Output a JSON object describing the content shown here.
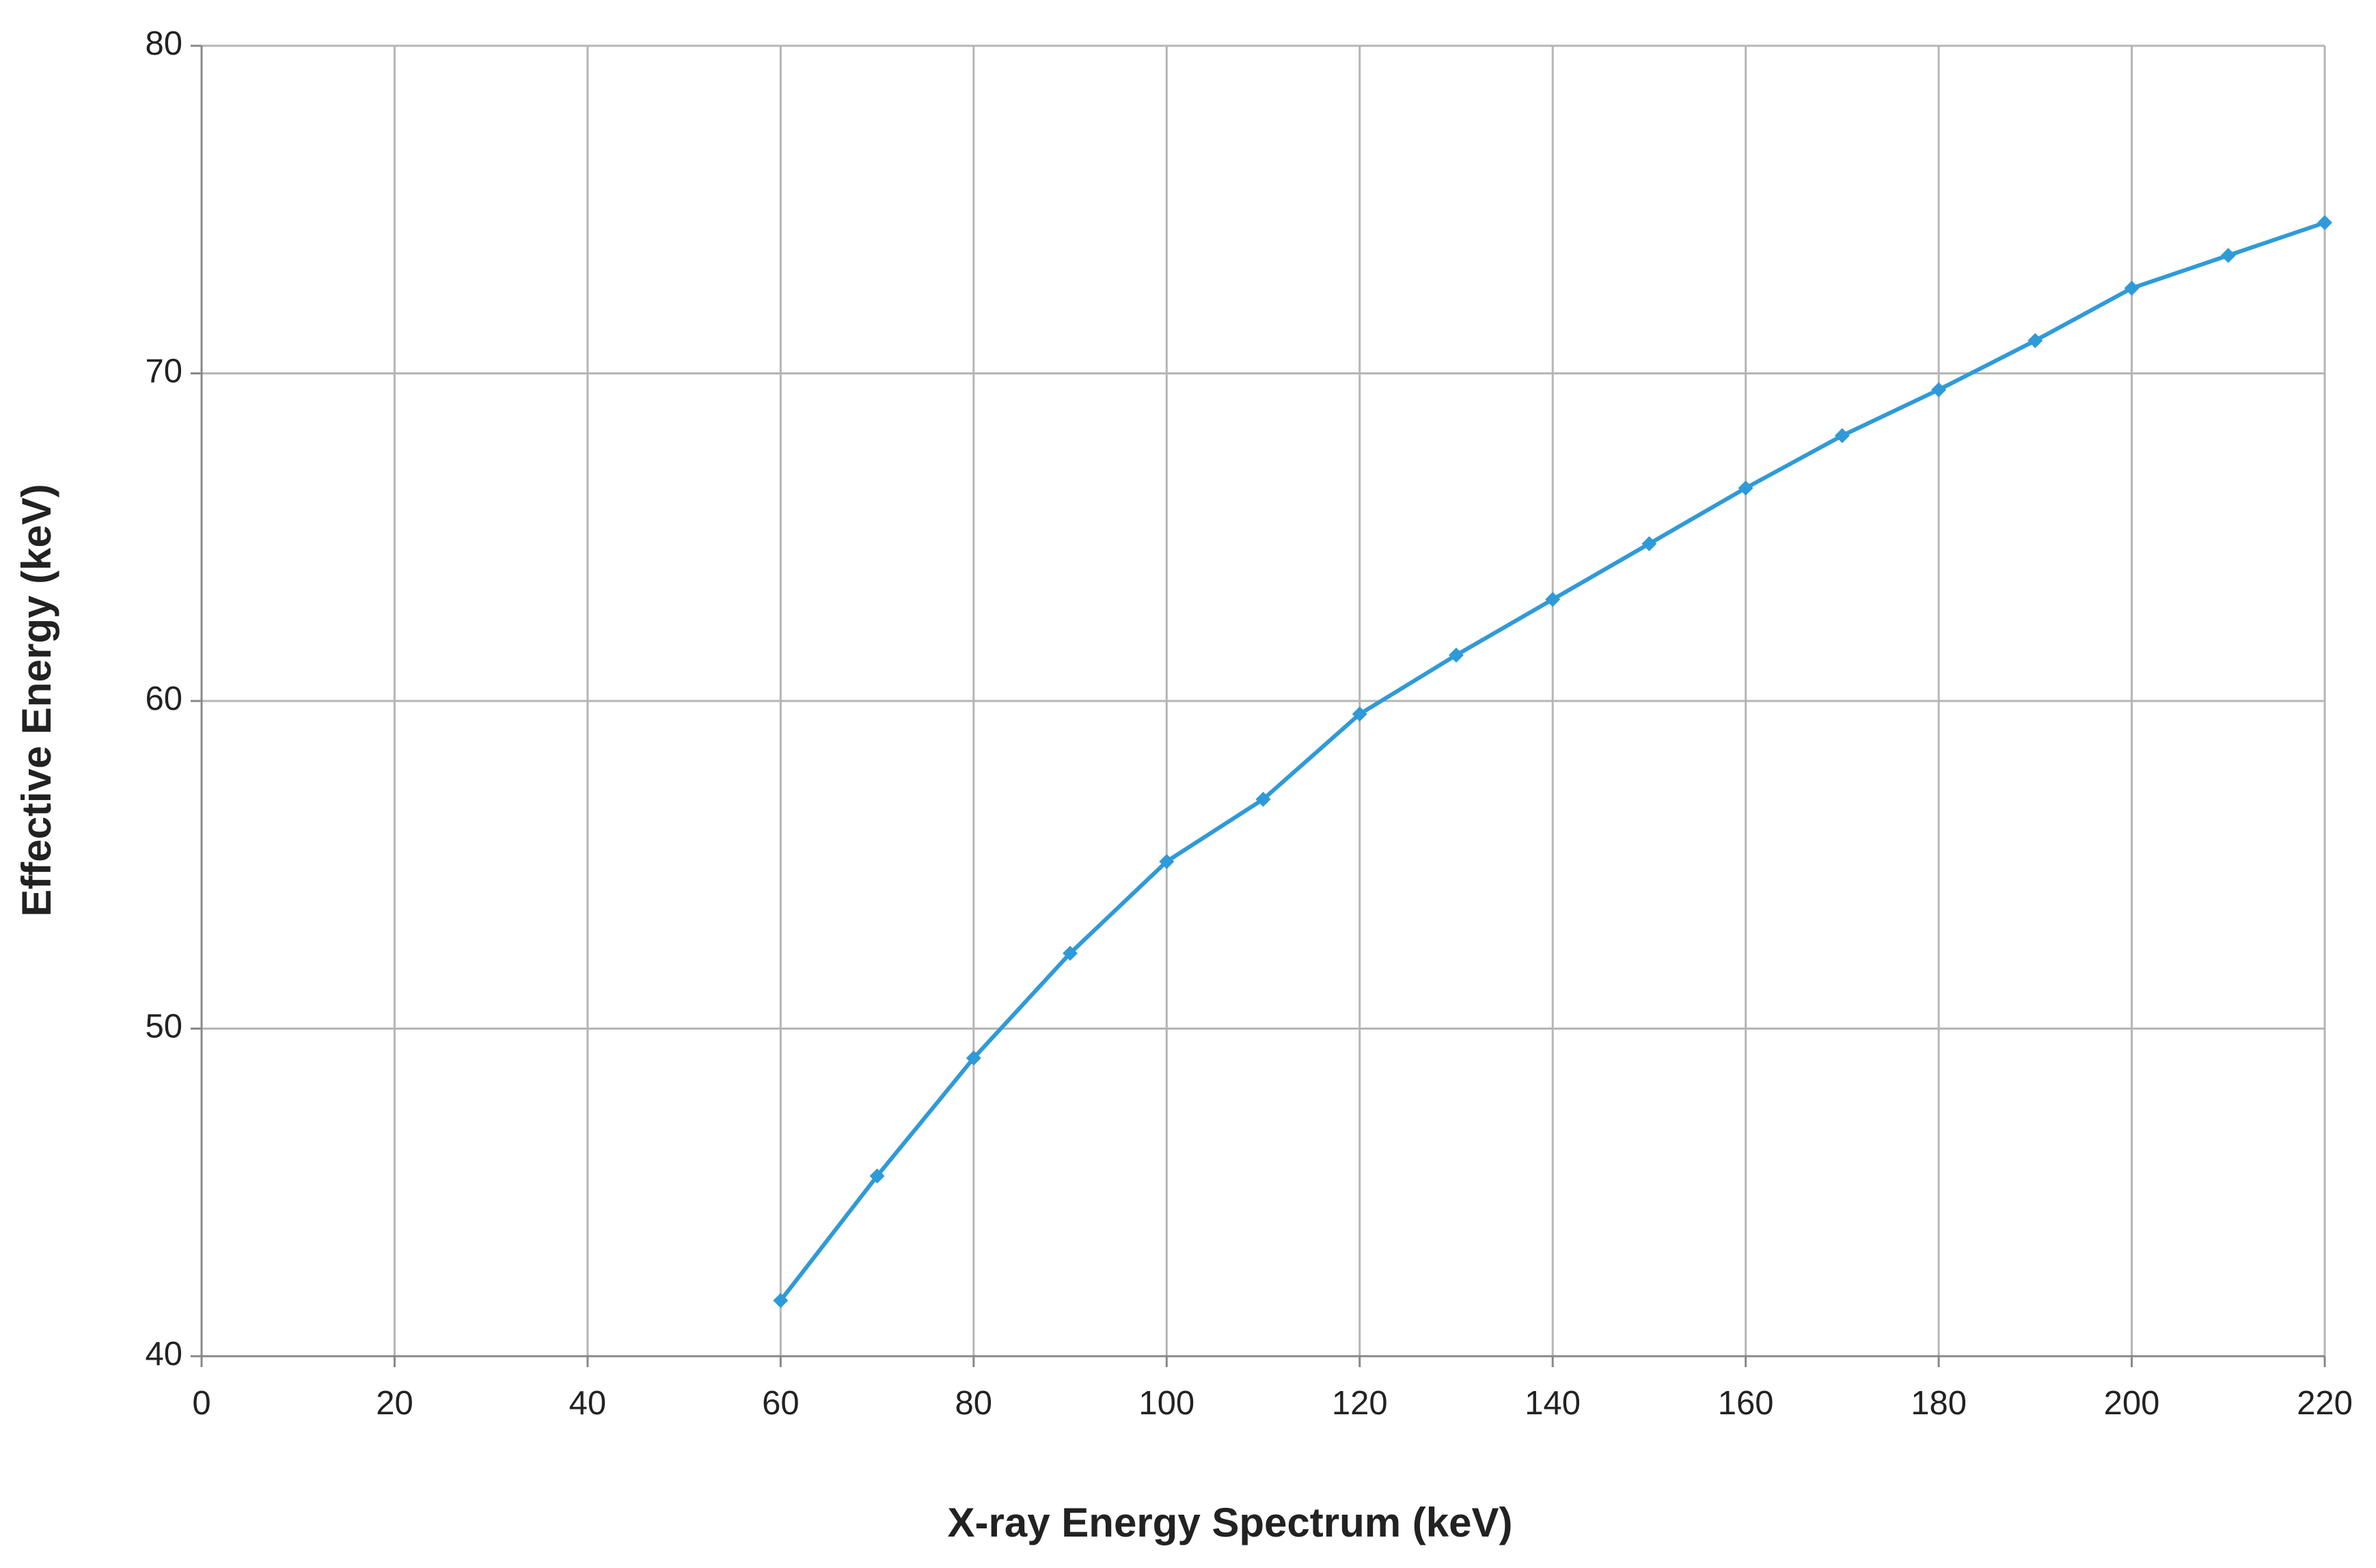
{
  "chart_data": {
    "type": "line",
    "x_label": "X-ray Energy Spectrum (keV)",
    "y_label": "Effective Energy (keV)",
    "x": [
      60,
      70,
      80,
      90,
      100,
      110,
      120,
      130,
      140,
      150,
      160,
      170,
      180,
      190,
      200,
      210,
      220
    ],
    "series": [
      {
        "color": "#2f9ad8",
        "values": [
          41.7,
          45.5,
          49.1,
          52.3,
          55.1,
          57.0,
          59.6,
          61.4,
          63.1,
          64.8,
          66.5,
          68.1,
          69.5,
          71.0,
          72.6,
          73.6,
          74.6
        ]
      }
    ],
    "xlim": [
      0,
      220
    ],
    "xticks": [
      0,
      20,
      40,
      60,
      80,
      100,
      120,
      140,
      160,
      180,
      200,
      220
    ],
    "ylim": [
      40,
      80
    ],
    "yticks": [
      40,
      50,
      60,
      70,
      80
    ],
    "grid": true
  }
}
